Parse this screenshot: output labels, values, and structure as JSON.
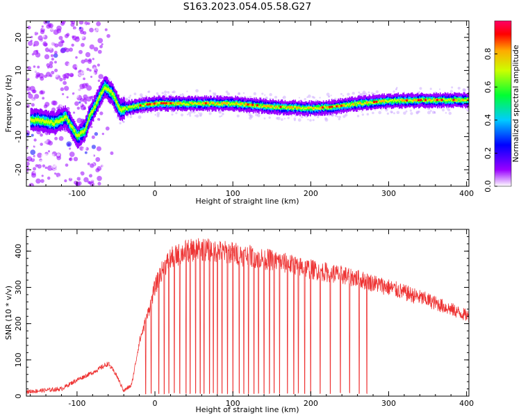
{
  "title": "S163.2023.054.05.58.G27",
  "chart_data": [
    {
      "type": "heatmap",
      "xlabel": "Height of straight line (km)",
      "ylabel": "Frequency (Hz)",
      "xlim": [
        -165,
        403
      ],
      "ylim": [
        -25,
        25
      ],
      "xticks": [
        "-100",
        "0",
        "100",
        "200",
        "300",
        "400"
      ],
      "yticks": [
        "-20",
        "-10",
        "0",
        "10",
        "20"
      ],
      "colorbar": {
        "label": "Normalized spectral amplitude",
        "range": [
          0,
          1
        ],
        "ticks": [
          "0.0",
          "0.2",
          "0.4",
          "0.6",
          "0.8"
        ]
      },
      "ridge": [
        {
          "x": -150,
          "y": -5
        },
        {
          "x": -130,
          "y": -6
        },
        {
          "x": -115,
          "y": -4
        },
        {
          "x": -100,
          "y": -10
        },
        {
          "x": -90,
          "y": -8
        },
        {
          "x": -85,
          "y": -4
        },
        {
          "x": -80,
          "y": -2
        },
        {
          "x": -72,
          "y": 2
        },
        {
          "x": -65,
          "y": 5
        },
        {
          "x": -55,
          "y": 3
        },
        {
          "x": -45,
          "y": -2
        },
        {
          "x": -30,
          "y": -1
        },
        {
          "x": 0,
          "y": 0
        },
        {
          "x": 50,
          "y": 0
        },
        {
          "x": 100,
          "y": 0
        },
        {
          "x": 150,
          "y": -1
        },
        {
          "x": 200,
          "y": -1.5
        },
        {
          "x": 230,
          "y": -1
        },
        {
          "x": 260,
          "y": 0
        },
        {
          "x": 300,
          "y": 0.8
        },
        {
          "x": 350,
          "y": 1
        },
        {
          "x": 403,
          "y": 1
        }
      ]
    },
    {
      "type": "line",
      "xlabel": "Height of straight line (km)",
      "ylabel": "SNR (10 * v/v)",
      "xlim": [
        -165,
        403
      ],
      "ylim": [
        0,
        460
      ],
      "xticks": [
        "-100",
        "0",
        "100",
        "200",
        "300",
        "400"
      ],
      "yticks": [
        "0",
        "100",
        "200",
        "300",
        "400"
      ],
      "color": "#ee3333",
      "envelope": [
        {
          "x": -165,
          "y": 12
        },
        {
          "x": -120,
          "y": 20
        },
        {
          "x": -100,
          "y": 45
        },
        {
          "x": -80,
          "y": 65
        },
        {
          "x": -60,
          "y": 90
        },
        {
          "x": -50,
          "y": 60
        },
        {
          "x": -40,
          "y": 15
        },
        {
          "x": -30,
          "y": 30
        },
        {
          "x": -20,
          "y": 150
        },
        {
          "x": -10,
          "y": 220
        },
        {
          "x": 0,
          "y": 300
        },
        {
          "x": 10,
          "y": 350
        },
        {
          "x": 20,
          "y": 380
        },
        {
          "x": 40,
          "y": 400
        },
        {
          "x": 60,
          "y": 405
        },
        {
          "x": 100,
          "y": 395
        },
        {
          "x": 150,
          "y": 375
        },
        {
          "x": 200,
          "y": 350
        },
        {
          "x": 250,
          "y": 330
        },
        {
          "x": 300,
          "y": 300
        },
        {
          "x": 350,
          "y": 265
        },
        {
          "x": 403,
          "y": 220
        }
      ],
      "dropouts_x": [
        -12,
        -5,
        5,
        12,
        18,
        25,
        32,
        40,
        45,
        52,
        58,
        63,
        70,
        75,
        80,
        86,
        93,
        100,
        108,
        114,
        120,
        127,
        133,
        140,
        147,
        153,
        160,
        170,
        178,
        184,
        192,
        200,
        212,
        225,
        238,
        250,
        262,
        272
      ]
    }
  ]
}
